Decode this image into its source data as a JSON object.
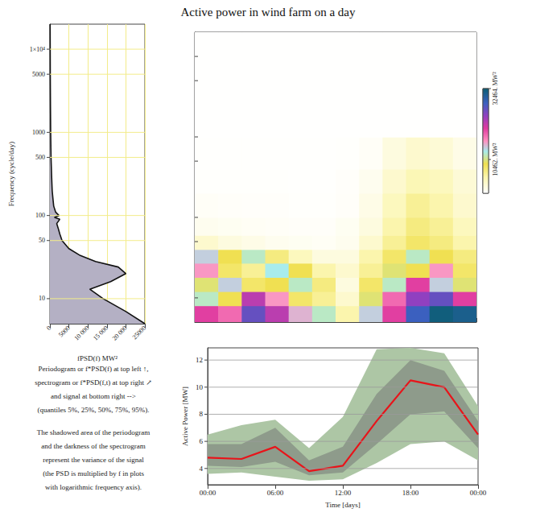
{
  "title": "Active power in wind farm on a day",
  "note": [
    [
      "Periodogram or f*PSD(f) at top left ↑,",
      "spectrogram or f*PSD(f,t) at top right ↗",
      "and signal at bottom right -->",
      "(quantiles 5%, 25%, 50%, 75%, 95%)."
    ],
    [
      "The shadowed area of the periodogram",
      "and the darkness of the spectrogram",
      "represent the variance of the signal",
      "(the PSD is multiplied by f in plots",
      "with logarithmic frequency axis)."
    ]
  ],
  "chart_data": [
    {
      "type": "area",
      "xlabel": "fPSD(f) MW²",
      "ylabel": "Frequency (cycle/day)",
      "x": [
        25000,
        20000,
        14000,
        10500,
        16000,
        20000,
        18000,
        12000,
        8000,
        5000,
        3200,
        2600,
        2200,
        1800,
        2600,
        1200,
        2400,
        1500,
        1000,
        800,
        600,
        450,
        300,
        200,
        150,
        100,
        80,
        60
      ],
      "y": [
        5,
        7,
        10,
        13,
        16,
        20,
        24,
        28,
        33,
        40,
        50,
        60,
        70,
        80,
        90,
        95,
        100,
        110,
        130,
        160,
        200,
        300,
        500,
        1000,
        2000,
        5000,
        10000,
        20000
      ],
      "color": "#b4b0c4",
      "xlim": [
        0,
        25000
      ],
      "xticks": [
        0,
        5000,
        {
          "value": 10000,
          "label": "10 000"
        },
        {
          "value": 15000,
          "label": "15 000"
        },
        {
          "value": 20000,
          "label": "20 000"
        },
        25000
      ],
      "ylim": [
        5,
        20000
      ],
      "yticks": [
        10,
        50,
        100,
        500,
        1000,
        5000,
        {
          "value": 10000,
          "label": "1×10⁴"
        }
      ],
      "log": "y",
      "grid": true
    },
    {
      "type": "heatmap",
      "x_edges": [
        0,
        2,
        4,
        6,
        8,
        10,
        12,
        14,
        16,
        18,
        20,
        22,
        24
      ],
      "y_edges": [
        5,
        8,
        12,
        18,
        27,
        40,
        60,
        100,
        200,
        400,
        1000,
        20000
      ],
      "values": [
        [
          20000,
          18000,
          26000,
          22000,
          15000,
          12000,
          5000,
          14000,
          20000,
          28000,
          32000,
          31000
        ],
        [
          12000,
          9000,
          22000,
          16000,
          8000,
          6000,
          3000,
          10000,
          18000,
          24000,
          26000,
          20000
        ],
        [
          10000,
          14000,
          8000,
          9000,
          12000,
          7000,
          2000,
          8000,
          12000,
          20000,
          14000,
          10000
        ],
        [
          16000,
          8000,
          6000,
          13000,
          9000,
          5000,
          3000,
          6000,
          10000,
          9000,
          16000,
          8000
        ],
        [
          14000,
          9000,
          12000,
          7000,
          4000,
          2000,
          2000,
          5000,
          8000,
          12000,
          9000,
          7000
        ],
        [
          3000,
          2000,
          1500,
          1000,
          800,
          600,
          1000,
          3000,
          6000,
          8000,
          7000,
          5000
        ],
        [
          1000,
          800,
          600,
          500,
          400,
          400,
          800,
          2000,
          5000,
          7000,
          6000,
          4000
        ],
        [
          500,
          400,
          300,
          300,
          200,
          200,
          400,
          1500,
          4000,
          6000,
          5000,
          3000
        ],
        [
          200,
          200,
          200,
          200,
          100,
          100,
          300,
          1000,
          3000,
          4500,
          4000,
          2500
        ],
        [
          100,
          100,
          100,
          100,
          100,
          100,
          200,
          500,
          2000,
          3000,
          2500,
          1500
        ],
        [
          50,
          50,
          50,
          50,
          50,
          50,
          50,
          50,
          50,
          50,
          50,
          50
        ]
      ],
      "xlim": [
        0,
        24
      ],
      "xticks": [
        0,
        6,
        12,
        18,
        24
      ],
      "ylim": [
        5,
        20000
      ],
      "yticks": [
        10,
        50,
        100,
        500,
        1000,
        5000,
        10000
      ],
      "log": "y",
      "tick_labels": false,
      "colorbar": {
        "range": [
          0,
          32464
        ],
        "ticks": [
          {
            "value": 10462,
            "label": "10462. MW²"
          },
          {
            "value": 32464,
            "label": "32464. MW²"
          }
        ]
      }
    },
    {
      "type": "line",
      "xlabel": "Time [days]",
      "ylabel": "Active Power [MW]",
      "x": [
        0,
        3,
        6,
        9,
        12,
        15,
        18,
        21,
        24
      ],
      "series": [
        {
          "name": "5%",
          "color": "#adc6a5",
          "values": [
            3.6,
            3.7,
            3.4,
            3.1,
            3.2,
            4.4,
            5.8,
            6.0,
            4.6
          ]
        },
        {
          "name": "25%",
          "color": "#8e9b8b",
          "values": [
            4.2,
            4.1,
            4.5,
            3.5,
            3.7,
            5.8,
            8.0,
            8.2,
            5.5
          ]
        },
        {
          "name": "50%",
          "color": "#e8141a",
          "values": [
            4.8,
            4.7,
            5.6,
            3.8,
            4.2,
            7.5,
            10.5,
            10.0,
            6.5
          ]
        },
        {
          "name": "75%",
          "color": "#8e9b8b",
          "values": [
            5.8,
            5.8,
            7.0,
            4.6,
            5.6,
            9.5,
            12.0,
            11.2,
            7.5
          ]
        },
        {
          "name": "95%",
          "color": "#adc6a5",
          "values": [
            6.5,
            7.2,
            7.6,
            5.5,
            7.8,
            12.8,
            12.9,
            12.5,
            8.6
          ]
        }
      ],
      "xlim": [
        0,
        24
      ],
      "xticks": [
        {
          "value": 0,
          "label": "00:00"
        },
        {
          "value": 6,
          "label": "06:00"
        },
        {
          "value": 12,
          "label": "12:00"
        },
        {
          "value": 18,
          "label": "18:00"
        },
        {
          "value": 24,
          "label": "00:00"
        }
      ],
      "ylim": [
        2.8,
        12.9
      ],
      "yticks": [
        4,
        6,
        8,
        10,
        12
      ],
      "grid": true
    }
  ]
}
